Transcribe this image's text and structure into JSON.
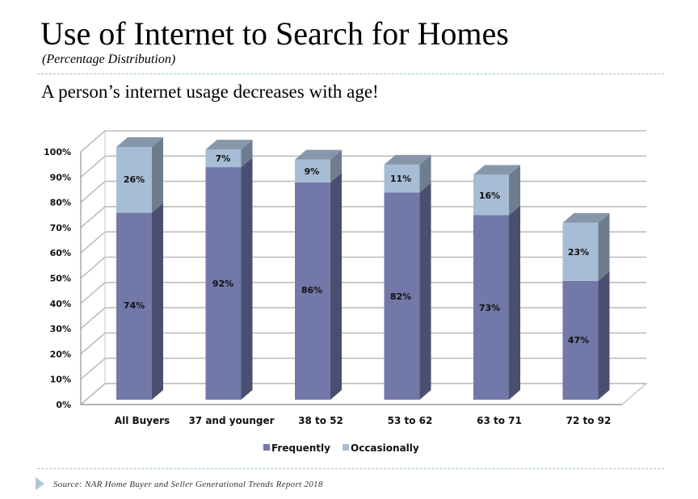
{
  "slide": {
    "title": "Use of Internet to Search for Homes",
    "subtitle": "(Percentage Distribution)",
    "tagline": "A person’s internet usage decreases with age!",
    "source": "Source: NAR Home Buyer and Seller Generational Trends Report 2018"
  },
  "chart_data": {
    "type": "bar",
    "stacked": true,
    "style": "3d-column",
    "categories": [
      "All Buyers",
      "37 and younger",
      "38 to 52",
      "53 to 62",
      "63 to 71",
      "72 to 92"
    ],
    "series": [
      {
        "name": "Frequently",
        "values": [
          74,
          92,
          86,
          82,
          73,
          47
        ],
        "labels": [
          "74%",
          "92%",
          "86%",
          "82%",
          "73%",
          "47%"
        ],
        "color": "#7278a8"
      },
      {
        "name": "Occasionally",
        "values": [
          26,
          7,
          9,
          11,
          16,
          23
        ],
        "labels": [
          "26%",
          "7%",
          "9%",
          "11%",
          "16%",
          "23%"
        ],
        "color": "#a7bdd5"
      }
    ],
    "y_ticks": [
      "0%",
      "10%",
      "20%",
      "30%",
      "40%",
      "50%",
      "60%",
      "70%",
      "80%",
      "90%",
      "100%"
    ],
    "ylim": [
      0,
      100
    ],
    "grid": true,
    "legend": "bottom"
  }
}
